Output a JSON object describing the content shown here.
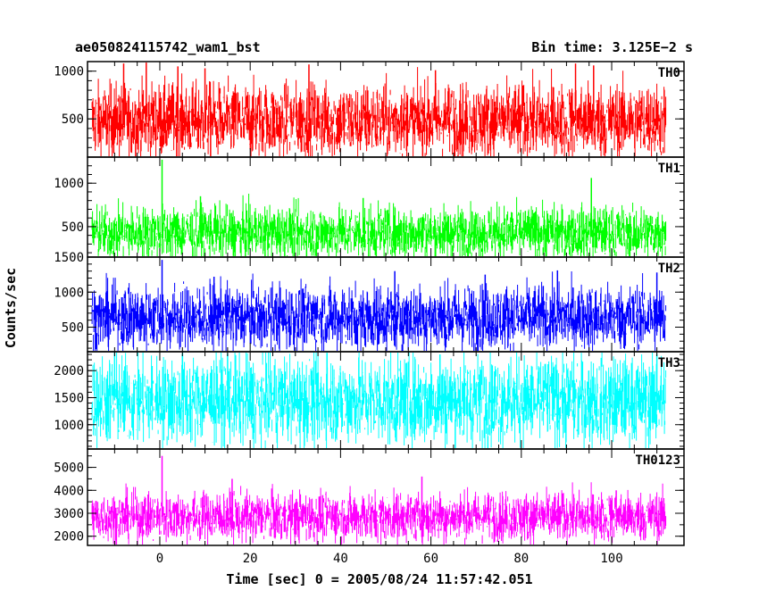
{
  "chart_data": {
    "type": "line",
    "title": "ae050824115742_wam1_bst",
    "subtitle": "Bin time: 3.125E−2 s",
    "xlabel": "Time [sec] 0 = 2005/08/24 11:57:42.051",
    "ylabel": "Counts/sec",
    "xlim": [
      -16,
      116
    ],
    "x_range_data": [
      -15,
      112
    ],
    "bin_time_s": 0.03125,
    "x_ticks": [
      0,
      20,
      40,
      60,
      80,
      100
    ],
    "grid": false,
    "panels": [
      {
        "label": "TH0",
        "color": "#ff0000",
        "ylim": [
          100,
          1100
        ],
        "y_ticks": [
          500,
          1000
        ],
        "typical_low": 160,
        "typical_high": 850,
        "mean": 480,
        "peaks": [
          {
            "x": -8,
            "y": 1080
          },
          {
            "x": -3,
            "y": 1090
          },
          {
            "x": 4,
            "y": 1050
          },
          {
            "x": 10,
            "y": 1030
          },
          {
            "x": 33,
            "y": 1070
          },
          {
            "x": 61,
            "y": 1010
          },
          {
            "x": 92,
            "y": 1080
          },
          {
            "x": 96,
            "y": 1060
          }
        ]
      },
      {
        "label": "TH1",
        "color": "#00ff00",
        "ylim": [
          150,
          1300
        ],
        "y_ticks": [
          500,
          1000
        ],
        "typical_low": 180,
        "typical_high": 720,
        "mean": 430,
        "peaks": [
          {
            "x": 0.5,
            "y": 1270
          },
          {
            "x": 9,
            "y": 850
          },
          {
            "x": 45,
            "y": 830
          },
          {
            "x": 95.5,
            "y": 1060
          }
        ]
      },
      {
        "label": "TH2",
        "color": "#0000ff",
        "ylim": [
          150,
          1500
        ],
        "y_ticks": [
          500,
          1000,
          1500
        ],
        "typical_low": 250,
        "typical_high": 1080,
        "mean": 640,
        "peaks": [
          {
            "x": 0.5,
            "y": 1460
          },
          {
            "x": 12,
            "y": 1220
          },
          {
            "x": 52,
            "y": 1300
          },
          {
            "x": 72,
            "y": 1250
          },
          {
            "x": 88,
            "y": 1310
          },
          {
            "x": 110,
            "y": 1280
          }
        ]
      },
      {
        "label": "TH3",
        "color": "#00ffff",
        "ylim": [
          550,
          2350
        ],
        "y_ticks": [
          1000,
          1500,
          2000
        ],
        "typical_low": 700,
        "typical_high": 2150,
        "mean": 1450,
        "peaks": [
          {
            "x": -10,
            "y": 2330
          },
          {
            "x": 5,
            "y": 2310
          },
          {
            "x": 15,
            "y": 2320
          },
          {
            "x": 37,
            "y": 2330
          },
          {
            "x": 62,
            "y": 2300
          },
          {
            "x": 110,
            "y": 2310
          }
        ]
      },
      {
        "label": "TH0123",
        "color": "#ff00ff",
        "ylim": [
          1600,
          5800
        ],
        "y_ticks": [
          2000,
          3000,
          4000,
          5000
        ],
        "typical_low": 2000,
        "typical_high": 3900,
        "mean": 2850,
        "peaks": [
          {
            "x": 0.5,
            "y": 5500
          },
          {
            "x": 16,
            "y": 4500
          },
          {
            "x": 58,
            "y": 4600
          },
          {
            "x": 101,
            "y": 4000
          }
        ]
      }
    ]
  }
}
